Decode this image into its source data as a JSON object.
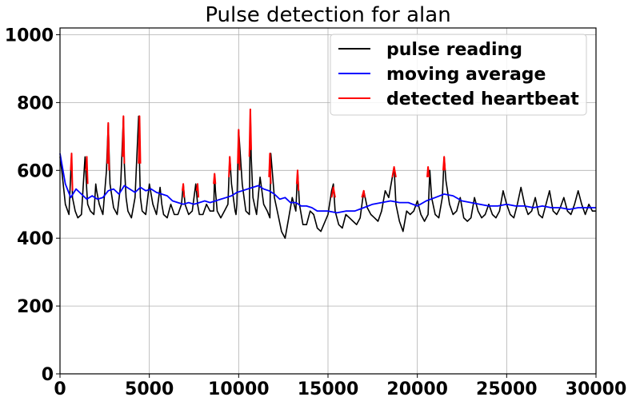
{
  "chart_data": {
    "type": "line",
    "title": "Pulse detection for alan",
    "xlabel": "",
    "ylabel": "",
    "xlim": [
      0,
      30000
    ],
    "ylim": [
      0,
      1020
    ],
    "xticks": [
      0,
      5000,
      10000,
      15000,
      20000,
      25000,
      30000
    ],
    "yticks": [
      0,
      200,
      400,
      600,
      800,
      1000
    ],
    "grid": true,
    "legend_position": "top-right",
    "series": [
      {
        "name": "pulse reading",
        "color": "#000000",
        "x": [
          0,
          100,
          300,
          500,
          650,
          700,
          850,
          1000,
          1200,
          1400,
          1500,
          1550,
          1700,
          1900,
          2000,
          2050,
          2200,
          2400,
          2600,
          2700,
          2800,
          3000,
          3200,
          3400,
          3550,
          3600,
          3700,
          3800,
          4000,
          4200,
          4400,
          4450,
          4500,
          4600,
          4800,
          5000,
          5200,
          5400,
          5600,
          5700,
          5800,
          6000,
          6200,
          6400,
          6600,
          6800,
          6900,
          7000,
          7200,
          7400,
          7600,
          7700,
          7800,
          8000,
          8200,
          8400,
          8600,
          8650,
          8700,
          8800,
          9000,
          9200,
          9400,
          9500,
          9600,
          9800,
          9850,
          9900,
          10000,
          10200,
          10400,
          10600,
          10650,
          10700,
          10800,
          11000,
          11200,
          11400,
          11600,
          11750,
          11800,
          12000,
          12200,
          12400,
          12600,
          12800,
          13000,
          13200,
          13300,
          13400,
          13600,
          13800,
          14000,
          14200,
          14400,
          14600,
          15000,
          15200,
          15300,
          15400,
          15600,
          15800,
          16000,
          16200,
          16400,
          16600,
          16800,
          17000,
          17200,
          17400,
          17600,
          17800,
          18000,
          18200,
          18400,
          18600,
          18700,
          18800,
          19000,
          19200,
          19400,
          19600,
          19800,
          20000,
          20200,
          20400,
          20600,
          20700,
          20800,
          21000,
          21200,
          21400,
          21500,
          21600,
          21800,
          22000,
          22200,
          22400,
          22600,
          22800,
          23000,
          23200,
          23400,
          23600,
          23800,
          24000,
          24200,
          24400,
          24600,
          24800,
          25000,
          25200,
          25400,
          25600,
          25800,
          26000,
          26200,
          26400,
          26600,
          26800,
          27000,
          27200,
          27400,
          27600,
          27800,
          28000,
          28200,
          28400,
          28600,
          28800,
          29000,
          29200,
          29400,
          29600,
          29800,
          30000
        ],
        "values": [
          640,
          600,
          500,
          470,
          650,
          520,
          480,
          460,
          470,
          640,
          540,
          500,
          480,
          470,
          560,
          540,
          500,
          470,
          600,
          740,
          560,
          490,
          470,
          560,
          760,
          620,
          520,
          480,
          460,
          520,
          760,
          620,
          520,
          480,
          470,
          560,
          500,
          470,
          550,
          500,
          470,
          460,
          500,
          470,
          470,
          500,
          560,
          500,
          470,
          480,
          560,
          500,
          470,
          470,
          500,
          480,
          480,
          590,
          540,
          480,
          460,
          480,
          500,
          640,
          560,
          480,
          470,
          500,
          720,
          560,
          480,
          470,
          780,
          640,
          520,
          470,
          580,
          500,
          480,
          460,
          650,
          520,
          470,
          420,
          400,
          460,
          520,
          480,
          600,
          500,
          440,
          440,
          480,
          470,
          430,
          420,
          470,
          540,
          560,
          480,
          440,
          430,
          470,
          460,
          450,
          440,
          460,
          540,
          490,
          470,
          460,
          450,
          480,
          540,
          520,
          580,
          610,
          500,
          450,
          420,
          480,
          470,
          480,
          510,
          470,
          450,
          470,
          600,
          520,
          470,
          460,
          520,
          640,
          570,
          500,
          470,
          480,
          520,
          460,
          450,
          460,
          520,
          480,
          460,
          470,
          500,
          470,
          460,
          480,
          540,
          500,
          470,
          460,
          500,
          550,
          500,
          470,
          480,
          520,
          470,
          460,
          500,
          540,
          480,
          470,
          490,
          520,
          480,
          470,
          500,
          540,
          500,
          470,
          500,
          480,
          480
        ]
      },
      {
        "name": "moving average",
        "color": "#0000ff",
        "x": [
          0,
          300,
          600,
          900,
          1200,
          1500,
          1800,
          2100,
          2400,
          2700,
          3000,
          3300,
          3600,
          3900,
          4200,
          4500,
          4800,
          5100,
          5400,
          5700,
          6000,
          6300,
          6600,
          6900,
          7200,
          7500,
          7800,
          8100,
          8400,
          8700,
          9000,
          9300,
          9600,
          9900,
          10200,
          10500,
          10800,
          11100,
          11400,
          11700,
          12000,
          12300,
          12600,
          12900,
          13200,
          13500,
          13800,
          14100,
          14400,
          14700,
          15000,
          15500,
          16000,
          16500,
          17000,
          17500,
          18000,
          18500,
          19000,
          19500,
          20000,
          20500,
          21000,
          21500,
          22000,
          22500,
          23000,
          23500,
          24000,
          24500,
          25000,
          25500,
          26000,
          26500,
          27000,
          27500,
          28000,
          28500,
          29000,
          29500,
          30000
        ],
        "values": [
          650,
          560,
          520,
          545,
          530,
          515,
          525,
          515,
          520,
          540,
          545,
          530,
          555,
          545,
          535,
          550,
          540,
          545,
          535,
          530,
          525,
          510,
          505,
          500,
          505,
          500,
          505,
          510,
          505,
          510,
          515,
          520,
          525,
          535,
          540,
          545,
          550,
          555,
          545,
          540,
          530,
          515,
          520,
          505,
          505,
          495,
          495,
          490,
          480,
          480,
          480,
          475,
          480,
          480,
          490,
          500,
          505,
          510,
          505,
          505,
          495,
          510,
          520,
          530,
          525,
          510,
          505,
          500,
          495,
          495,
          500,
          495,
          495,
          490,
          495,
          490,
          490,
          485,
          490,
          490,
          490
        ]
      },
      {
        "name": "detected heartbeat",
        "color": "#ff0000",
        "segments": [
          {
            "x": [
              600,
              650,
              700
            ],
            "values": [
              600,
              650,
              540
            ]
          },
          {
            "x": [
              1450,
              1500,
              1550
            ],
            "values": [
              600,
              640,
              560
            ]
          },
          {
            "x": [
              2650,
              2700,
              2750
            ],
            "values": [
              620,
              740,
              600
            ]
          },
          {
            "x": [
              3500,
              3550,
              3600
            ],
            "values": [
              640,
              760,
              620
            ]
          },
          {
            "x": [
              4400,
              4450,
              4500
            ],
            "values": [
              620,
              760,
              620
            ]
          },
          {
            "x": [
              6850,
              6900,
              6950
            ],
            "values": [
              540,
              560,
              520
            ]
          },
          {
            "x": [
              7650,
              7700,
              7750
            ],
            "values": [
              540,
              560,
              520
            ]
          },
          {
            "x": [
              8600,
              8650,
              8700
            ],
            "values": [
              560,
              590,
              560
            ]
          },
          {
            "x": [
              9450,
              9500,
              9550
            ],
            "values": [
              580,
              640,
              600
            ]
          },
          {
            "x": [
              9950,
              10000,
              10050
            ],
            "values": [
              620,
              720,
              600
            ]
          },
          {
            "x": [
              10600,
              10650,
              10700
            ],
            "values": [
              640,
              780,
              660
            ]
          },
          {
            "x": [
              11700,
              11750,
              11800
            ],
            "values": [
              580,
              650,
              560
            ]
          },
          {
            "x": [
              13250,
              13300,
              13350
            ],
            "values": [
              560,
              600,
              540
            ]
          },
          {
            "x": [
              15200,
              15300,
              15400
            ],
            "values": [
              520,
              550,
              520
            ]
          },
          {
            "x": [
              16900,
              17000,
              17050
            ],
            "values": [
              520,
              540,
              520
            ]
          },
          {
            "x": [
              18600,
              18700,
              18800
            ],
            "values": [
              580,
              610,
              580
            ]
          },
          {
            "x": [
              20550,
              20600,
              20650
            ],
            "values": [
              580,
              610,
              580
            ]
          },
          {
            "x": [
              21450,
              21500,
              21550
            ],
            "values": [
              600,
              640,
              600
            ]
          }
        ]
      }
    ]
  }
}
